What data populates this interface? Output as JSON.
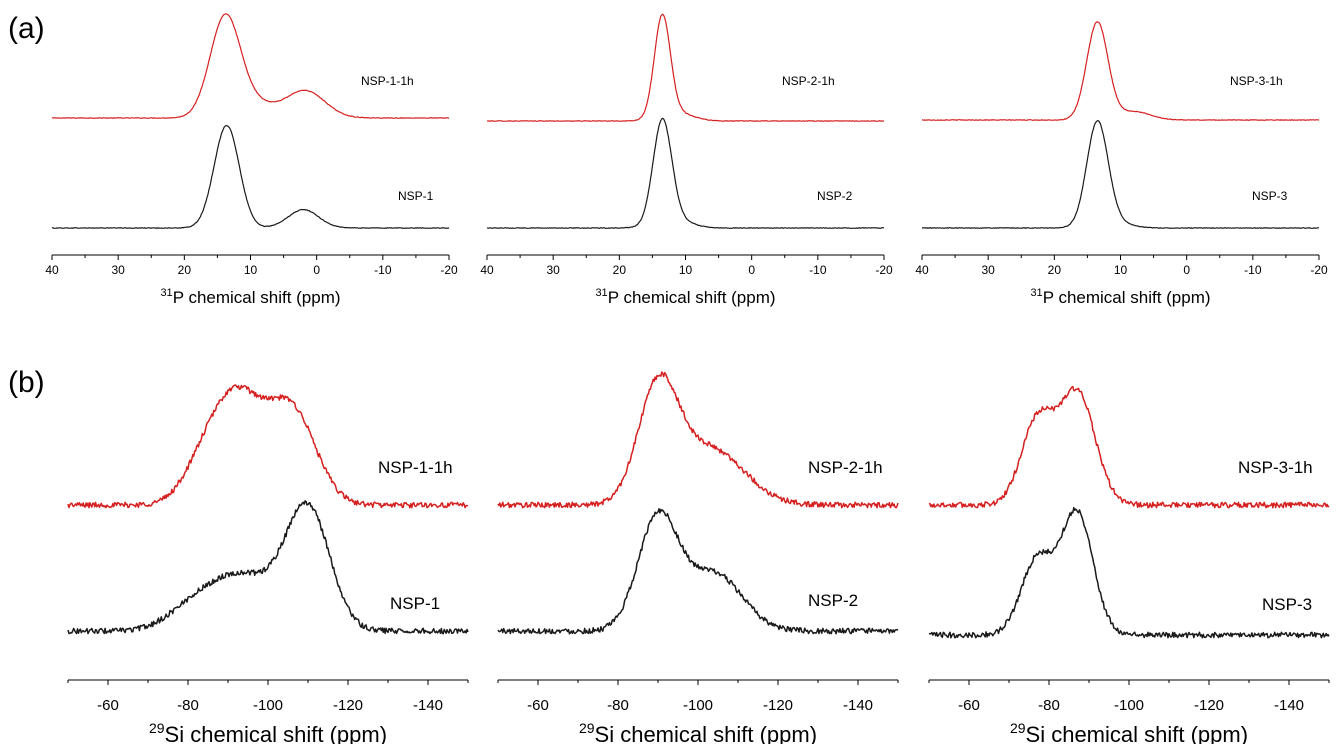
{
  "panel_labels": [
    "(a)",
    "(b)"
  ],
  "colors": {
    "treated": "#d62020",
    "pristine": "#1a1a1a",
    "axis": "#000000"
  },
  "chart_data": [
    {
      "id": "a1",
      "type": "line",
      "xlabel_sup": "31",
      "xlabel": "P chemical shift (ppm)",
      "xlim": [
        40,
        -20
      ],
      "xticks": [
        40,
        30,
        20,
        10,
        0,
        -10,
        -20
      ],
      "grid": false,
      "series": [
        {
          "name": "NSP-1-1h",
          "color": "#d62020",
          "baseline": 0,
          "peaks": [
            [
              13.8,
              1.0,
              2.3
            ],
            [
              9.0,
              0.12,
              2.5
            ],
            [
              1.8,
              0.27,
              3.0
            ]
          ]
        },
        {
          "name": "NSP-1",
          "color": "#1a1a1a",
          "baseline": 0,
          "peaks": [
            [
              13.6,
              0.95,
              1.9
            ],
            [
              2.0,
              0.17,
              2.3
            ]
          ]
        }
      ]
    },
    {
      "id": "a2",
      "type": "line",
      "xlabel_sup": "31",
      "xlabel": "P chemical shift (ppm)",
      "xlim": [
        40,
        -20
      ],
      "xticks": [
        40,
        30,
        20,
        10,
        0,
        -10,
        -20
      ],
      "grid": false,
      "series": [
        {
          "name": "NSP-2-1h",
          "color": "#d62020",
          "baseline": 0,
          "peaks": [
            [
              13.5,
              0.95,
              1.2
            ],
            [
              11.5,
              0.08,
              2.5
            ]
          ]
        },
        {
          "name": "NSP-2",
          "color": "#1a1a1a",
          "baseline": 0,
          "peaks": [
            [
              13.5,
              0.95,
              1.4
            ],
            [
              11.8,
              0.08,
              2.5
            ]
          ]
        }
      ]
    },
    {
      "id": "a3",
      "type": "line",
      "xlabel_sup": "31",
      "xlabel": "P chemical shift (ppm)",
      "xlim": [
        40,
        -20
      ],
      "xticks": [
        40,
        30,
        20,
        10,
        0,
        -10,
        -20
      ],
      "grid": false,
      "series": [
        {
          "name": "NSP-3-1h",
          "color": "#d62020",
          "baseline": 0,
          "peaks": [
            [
              13.5,
              0.92,
              1.6
            ],
            [
              8.0,
              0.08,
              2.5
            ]
          ]
        },
        {
          "name": "NSP-3",
          "color": "#1a1a1a",
          "baseline": 0,
          "peaks": [
            [
              13.5,
              0.95,
              1.6
            ],
            [
              11.5,
              0.06,
              2.5
            ]
          ]
        }
      ]
    },
    {
      "id": "b1",
      "type": "line",
      "xlabel_sup": "29",
      "xlabel": "Si chemical shift (ppm)",
      "xlim": [
        -50,
        -150
      ],
      "xticks": [
        -60,
        -80,
        -100,
        -120,
        -140
      ],
      "grid": false,
      "series": [
        {
          "name": "NSP-1-1h",
          "color": "#d62020",
          "baseline": 0,
          "peaks": [
            [
              -92,
              0.86,
              6.5
            ],
            [
              -106,
              0.74,
              6.0
            ],
            [
              -83,
              0.18,
              5.0
            ]
          ]
        },
        {
          "name": "NSP-1",
          "color": "#1a1a1a",
          "baseline": 0,
          "peaks": [
            [
              -110,
              0.95,
              5.5
            ],
            [
              -93,
              0.45,
              9.0
            ],
            [
              -80,
              0.1,
              6.0
            ]
          ]
        }
      ]
    },
    {
      "id": "b2",
      "type": "line",
      "xlabel_sup": "29",
      "xlabel": "Si chemical shift (ppm)",
      "xlim": [
        -50,
        -150
      ],
      "xticks": [
        -60,
        -80,
        -100,
        -120,
        -140
      ],
      "grid": false,
      "series": [
        {
          "name": "NSP-2-1h",
          "color": "#d62020",
          "baseline": 0,
          "peaks": [
            [
              -90,
              0.9,
              5.0
            ],
            [
              -103,
              0.45,
              8.5
            ]
          ]
        },
        {
          "name": "NSP-2",
          "color": "#1a1a1a",
          "baseline": 0,
          "peaks": [
            [
              -90,
              0.9,
              5.0
            ],
            [
              -104,
              0.46,
              7.0
            ]
          ]
        }
      ]
    },
    {
      "id": "b3",
      "type": "line",
      "xlabel_sup": "29",
      "xlabel": "Si chemical shift (ppm)",
      "xlim": [
        -50,
        -150
      ],
      "xticks": [
        -60,
        -80,
        -100,
        -120,
        -140
      ],
      "grid": false,
      "series": [
        {
          "name": "NSP-3-1h",
          "color": "#d62020",
          "baseline": 0,
          "peaks": [
            [
              -87,
              0.9,
              4.5
            ],
            [
              -77,
              0.66,
              4.0
            ]
          ]
        },
        {
          "name": "NSP-3",
          "color": "#1a1a1a",
          "baseline": 0,
          "peaks": [
            [
              -87,
              0.98,
              4.0
            ],
            [
              -77,
              0.6,
              4.0
            ]
          ]
        }
      ]
    }
  ]
}
